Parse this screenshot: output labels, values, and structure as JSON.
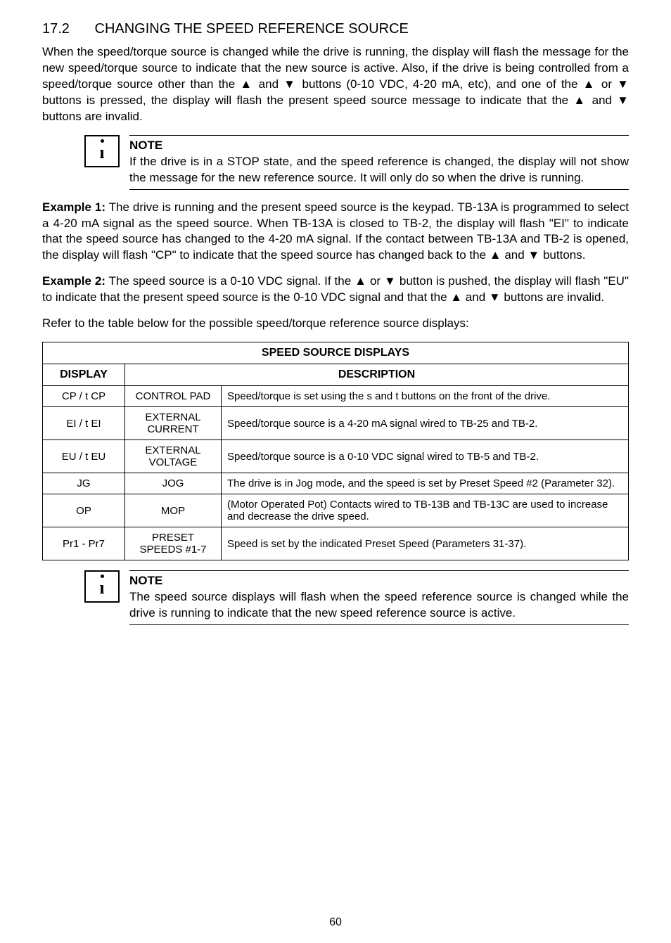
{
  "section": {
    "number": "17.2",
    "title": "CHANGING THE SPEED REFERENCE SOURCE"
  },
  "paragraphs": {
    "intro": "When the speed/torque source is changed while the drive is running, the display will flash the message for the new speed/torque source to indicate that the new source is active. Also, if the drive is being controlled from a speed/torque source other than the ▲ and ▼ buttons (0-10 VDC, 4-20 mA, etc), and one of the ▲ or ▼ buttons is pressed, the display will flash the present speed source message to indicate that the ▲ and ▼ buttons are invalid.",
    "example1_label": "Example 1:",
    "example1": " The drive is running and the present speed source is the keypad. TB-13A is programmed to select a 4-20 mA signal as the speed source. When TB-13A is closed to TB-2, the display will flash \"EI\" to indicate that the speed source has changed to the 4-20 mA signal. If the contact between TB-13A and TB-2 is opened, the display will flash \"CP\" to indicate that the speed source has changed back to the ▲ and ▼ buttons.",
    "example2_label": "Example 2:",
    "example2": " The speed source is a 0-10 VDC signal. If the ▲ or ▼ button is pushed, the display will flash \"EU\" to indicate that the present speed source is the 0-10 VDC signal and that the ▲ and ▼ buttons are invalid.",
    "refer": "Refer to the table below for the possible speed/torque reference source displays:"
  },
  "note1": {
    "title": "NOTE",
    "text": "If the drive is in a STOP state, and the speed reference is changed, the display will not show the message for the new reference source. It will only do so when the drive is running."
  },
  "note2": {
    "title": "NOTE",
    "text": "The speed source displays will flash when the speed reference source is changed while the drive is running to indicate that the new speed reference source is active."
  },
  "table": {
    "title": "SPEED SOURCE DISPLAYS",
    "headers": {
      "display": "DISPLAY",
      "description": "DESCRIPTION"
    },
    "rows": [
      {
        "display": "CP / t CP",
        "label": "CONTROL PAD",
        "desc": "Speed/torque is set using the s and t buttons on the front of the drive."
      },
      {
        "display": "EI / t EI",
        "label": "EXTERNAL CURRENT",
        "desc": "Speed/torque source is a 4-20 mA signal wired to TB-25 and TB-2."
      },
      {
        "display": "EU / t EU",
        "label": "EXTERNAL VOLTAGE",
        "desc": "Speed/torque source is a 0-10 VDC signal wired to TB-5 and TB-2."
      },
      {
        "display": "JG",
        "label": "JOG",
        "desc": "The drive is in Jog mode, and the speed is set by Preset Speed #2 (Parameter 32)."
      },
      {
        "display": "OP",
        "label": "MOP",
        "desc": "(Motor Operated Pot)   Contacts wired to TB-13B and TB-13C are used to increase and decrease the drive speed."
      },
      {
        "display": "Pr1 - Pr7",
        "label": "PRESET SPEEDS #1-7",
        "desc": "Speed is set by the indicated Preset Speed (Parameters 31-37)."
      }
    ]
  },
  "page_number": "60"
}
